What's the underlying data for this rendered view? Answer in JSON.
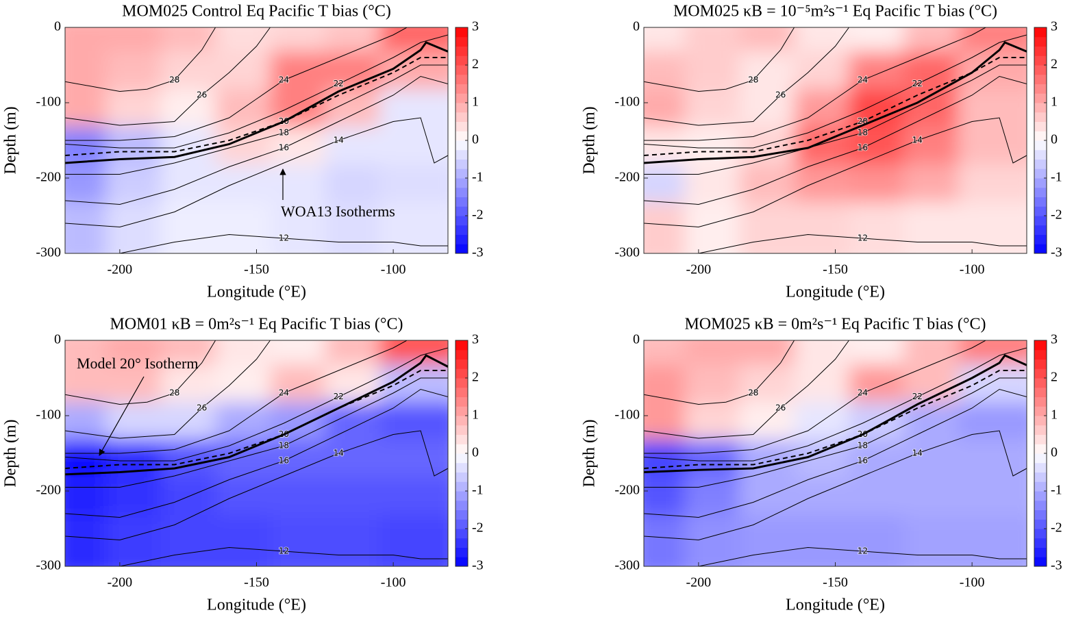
{
  "chart_data": [
    {
      "type": "contour",
      "title": "MOM025 Control Eq Pacific T bias (°C)",
      "xlabel": "Longitude (°E)",
      "ylabel": "Depth (m)",
      "xlim": [
        -220,
        -80
      ],
      "ylim": [
        -300,
        0
      ],
      "xticks": [
        -200,
        -150,
        -100
      ],
      "yticks": [
        0,
        -100,
        -200,
        -300
      ],
      "clim": [
        -3,
        3
      ],
      "cticks": [
        3,
        2,
        1,
        0,
        -1,
        -2,
        -3
      ],
      "colormap": [
        "#0000ff",
        "#ffffff",
        "#ff0000"
      ],
      "x": [
        -210,
        -190,
        -170,
        -150,
        -130,
        -110,
        -90
      ],
      "y": [
        -25,
        -75,
        -125,
        -175,
        -225,
        -275
      ],
      "z": [
        [
          1.0,
          1.0,
          0.8,
          0.4,
          0.5,
          0.7,
          1.8
        ],
        [
          1.0,
          0.8,
          0.5,
          0.5,
          1.5,
          1.5,
          1.0
        ],
        [
          1.0,
          0.5,
          0.2,
          0.8,
          1.5,
          0.8,
          -0.3
        ],
        [
          -1.5,
          -0.8,
          -0.3,
          0.5,
          0.3,
          -0.3,
          -0.3
        ],
        [
          -1.2,
          -0.6,
          -0.3,
          -0.3,
          -0.3,
          -0.5,
          -0.4
        ],
        [
          -0.8,
          -0.4,
          -0.2,
          -0.2,
          -0.3,
          -0.4,
          -0.3
        ]
      ],
      "model_20": {
        "x": [
          -220,
          -200,
          -180,
          -160,
          -140,
          -120,
          -100,
          -90,
          -88,
          -80
        ],
        "y": [
          -180,
          -175,
          -172,
          -155,
          -125,
          -85,
          -55,
          -30,
          -20,
          -32
        ]
      },
      "annotation": "WOA13 Isotherms"
    },
    {
      "type": "contour",
      "title": "MOM025 κB = 10⁻⁵m²s⁻¹ Eq Pacific T bias (°C)",
      "xlabel": "Longitude (°E)",
      "ylabel": "Depth (m)",
      "xlim": [
        -220,
        -80
      ],
      "ylim": [
        -300,
        0
      ],
      "xticks": [
        -200,
        -150,
        -100
      ],
      "yticks": [
        0,
        -100,
        -200,
        -300
      ],
      "clim": [
        -3,
        3
      ],
      "cticks": [
        3,
        2,
        1,
        0,
        -1,
        -2,
        -3
      ],
      "colormap": [
        "#0000ff",
        "#ffffff",
        "#ff0000"
      ],
      "x": [
        -210,
        -190,
        -170,
        -150,
        -130,
        -110,
        -90
      ],
      "y": [
        -25,
        -75,
        -125,
        -175,
        -225,
        -275
      ],
      "z": [
        [
          0.3,
          0.6,
          0.8,
          0.3,
          0.2,
          0.8,
          1.5
        ],
        [
          0.8,
          0.6,
          0.3,
          0.5,
          1.5,
          1.8,
          1.0
        ],
        [
          1.0,
          0.5,
          0.3,
          1.2,
          2.2,
          1.8,
          0.8
        ],
        [
          0.3,
          0.2,
          0.5,
          1.8,
          2.0,
          1.5,
          0.8
        ],
        [
          -0.5,
          0.3,
          0.8,
          1.2,
          1.3,
          1.0,
          0.5
        ],
        [
          0.6,
          0.2,
          0.5,
          0.5,
          0.4,
          0.3,
          0.3
        ]
      ],
      "model_20": {
        "x": [
          -220,
          -200,
          -180,
          -160,
          -140,
          -120,
          -100,
          -90,
          -88,
          -80
        ],
        "y": [
          -180,
          -175,
          -172,
          -160,
          -130,
          -100,
          -60,
          -30,
          -20,
          -32
        ]
      }
    },
    {
      "type": "contour",
      "title": "MOM01 κB = 0m²s⁻¹ Eq Pacific T bias (°C)",
      "xlabel": "Longitude (°E)",
      "ylabel": "Depth (m)",
      "xlim": [
        -220,
        -80
      ],
      "ylim": [
        -300,
        0
      ],
      "xticks": [
        -200,
        -150,
        -100
      ],
      "yticks": [
        0,
        -100,
        -200,
        -300
      ],
      "clim": [
        -3,
        3
      ],
      "cticks": [
        3,
        2,
        1,
        0,
        -1,
        -2,
        -3
      ],
      "colormap": [
        "#0000ff",
        "#ffffff",
        "#ff0000"
      ],
      "x": [
        -210,
        -190,
        -170,
        -150,
        -130,
        -110,
        -90
      ],
      "y": [
        -25,
        -75,
        -125,
        -175,
        -225,
        -275
      ],
      "z": [
        [
          0.8,
          1.0,
          0.8,
          0.3,
          0.2,
          0.8,
          2.0
        ],
        [
          0.8,
          0.8,
          0.3,
          0.2,
          0.8,
          0.3,
          -0.8
        ],
        [
          -1.0,
          -0.5,
          -0.5,
          -1.0,
          -1.2,
          -1.8,
          -2.0
        ],
        [
          -2.8,
          -2.5,
          -2.0,
          -1.8,
          -1.8,
          -1.8,
          -1.8
        ],
        [
          -2.6,
          -2.4,
          -2.2,
          -2.0,
          -2.0,
          -2.0,
          -2.0
        ],
        [
          -2.5,
          -2.3,
          -2.2,
          -2.2,
          -2.1,
          -2.1,
          -2.2
        ]
      ],
      "model_20": {
        "x": [
          -220,
          -200,
          -180,
          -160,
          -140,
          -120,
          -100,
          -90,
          -88,
          -80
        ],
        "y": [
          -178,
          -175,
          -170,
          -155,
          -125,
          -90,
          -55,
          -30,
          -20,
          -35
        ]
      },
      "annotation": "Model 20° Isotherm"
    },
    {
      "type": "contour",
      "title": "MOM025 κB = 0m²s⁻¹ Eq Pacific T bias (°C)",
      "xlabel": "Longitude (°E)",
      "ylabel": "Depth (m)",
      "xlim": [
        -220,
        -80
      ],
      "ylim": [
        -300,
        0
      ],
      "xticks": [
        -200,
        -150,
        -100
      ],
      "yticks": [
        0,
        -100,
        -200,
        -300
      ],
      "clim": [
        -3,
        3
      ],
      "cticks": [
        3,
        2,
        1,
        0,
        -1,
        -2,
        -3
      ],
      "colormap": [
        "#0000ff",
        "#ffffff",
        "#ff0000"
      ],
      "x": [
        -210,
        -190,
        -170,
        -150,
        -130,
        -110,
        -90
      ],
      "y": [
        -25,
        -75,
        -125,
        -175,
        -225,
        -275
      ],
      "z": [
        [
          0.8,
          1.0,
          1.0,
          0.3,
          0.2,
          0.8,
          1.5
        ],
        [
          1.2,
          0.8,
          0.5,
          0.3,
          1.2,
          0.8,
          -0.5
        ],
        [
          1.2,
          0.5,
          0.2,
          -0.3,
          -0.6,
          -1.0,
          -1.2
        ],
        [
          -2.2,
          -1.8,
          -1.0,
          -0.8,
          -1.0,
          -1.0,
          -1.0
        ],
        [
          -2.0,
          -1.5,
          -1.0,
          -1.0,
          -1.0,
          -1.0,
          -1.0
        ],
        [
          -1.6,
          -1.3,
          -1.2,
          -1.2,
          -1.2,
          -1.1,
          -1.1
        ]
      ],
      "model_20": {
        "x": [
          -220,
          -200,
          -180,
          -160,
          -140,
          -120,
          -100,
          -90,
          -88,
          -80
        ],
        "y": [
          -175,
          -172,
          -170,
          -155,
          -125,
          -85,
          -50,
          -30,
          -20,
          -33
        ]
      }
    }
  ],
  "isotherms": [
    {
      "level": 28,
      "x": [
        -220,
        -200,
        -190,
        -180,
        -170,
        -165
      ],
      "y": [
        -72,
        -85,
        -82,
        -70,
        -30,
        0
      ]
    },
    {
      "level": 26,
      "x": [
        -220,
        -200,
        -180,
        -170,
        -160,
        -150,
        -145
      ],
      "y": [
        -120,
        -130,
        -125,
        -90,
        -60,
        -25,
        0
      ]
    },
    {
      "level": 24,
      "x": [
        -220,
        -200,
        -180,
        -160,
        -150,
        -140,
        -130,
        -120,
        -110,
        -100,
        -95
      ],
      "y": [
        -150,
        -150,
        -145,
        -120,
        -95,
        -70,
        -55,
        -40,
        -25,
        -10,
        0
      ]
    },
    {
      "level": 22,
      "x": [
        -220,
        -200,
        -180,
        -160,
        -140,
        -120,
        -100,
        -90,
        -85,
        -80
      ],
      "y": [
        -155,
        -160,
        -160,
        -140,
        -110,
        -75,
        -40,
        -20,
        -15,
        -10
      ]
    },
    {
      "level": 20,
      "dashed": true,
      "x": [
        -220,
        -200,
        -180,
        -160,
        -140,
        -120,
        -100,
        -90,
        -80
      ],
      "y": [
        -170,
        -165,
        -165,
        -150,
        -125,
        -90,
        -60,
        -40,
        -40
      ]
    },
    {
      "level": 18,
      "x": [
        -220,
        -200,
        -180,
        -160,
        -140,
        -120,
        -100,
        -90,
        -80
      ],
      "y": [
        -195,
        -195,
        -180,
        -160,
        -140,
        -105,
        -70,
        -50,
        -50
      ]
    },
    {
      "level": 16,
      "x": [
        -220,
        -200,
        -180,
        -160,
        -140,
        -120,
        -100,
        -90,
        -80
      ],
      "y": [
        -230,
        -235,
        -215,
        -185,
        -160,
        -125,
        -90,
        -65,
        -75
      ]
    },
    {
      "level": 14,
      "x": [
        -220,
        -200,
        -180,
        -160,
        -140,
        -120,
        -100,
        -90,
        -85,
        -80
      ],
      "y": [
        -260,
        -265,
        -245,
        -210,
        -180,
        -150,
        -125,
        -120,
        -180,
        -170
      ]
    },
    {
      "level": 12,
      "x": [
        -220,
        -200,
        -180,
        -160,
        -140,
        -120,
        -100,
        -90,
        -80
      ],
      "y": [
        -305,
        -300,
        -285,
        -275,
        -280,
        -285,
        -285,
        -290,
        -290
      ]
    }
  ]
}
